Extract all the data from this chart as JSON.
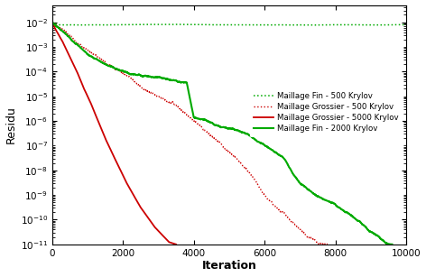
{
  "title": "",
  "xlabel": "Iteration",
  "ylabel": "Residu",
  "xlim": [
    0,
    10000
  ],
  "ylim": [
    1e-11,
    0.05
  ],
  "background_color": "#ffffff",
  "legend_entries": [
    "Maillage Grossier - 500 Krylov",
    "Maillage Grossier - 5000 Krylov",
    "Maillage Fin - 500 Krylov",
    "Maillage Fin - 2000 Krylov"
  ],
  "yticks": [
    1e-10,
    1e-08,
    1e-06,
    0.0001,
    0.01
  ],
  "ytick_labels": [
    "10$^{-10}$",
    "10$^{-8}$",
    "10$^{-6}$",
    "10$^{-4}$",
    "10$^{-2}$"
  ],
  "xticks": [
    0,
    2000,
    4000,
    6000,
    8000,
    10000
  ],
  "red_color": "#cc0000",
  "green_color": "#00aa00",
  "figsize": [
    4.72,
    3.07
  ],
  "dpi": 100
}
